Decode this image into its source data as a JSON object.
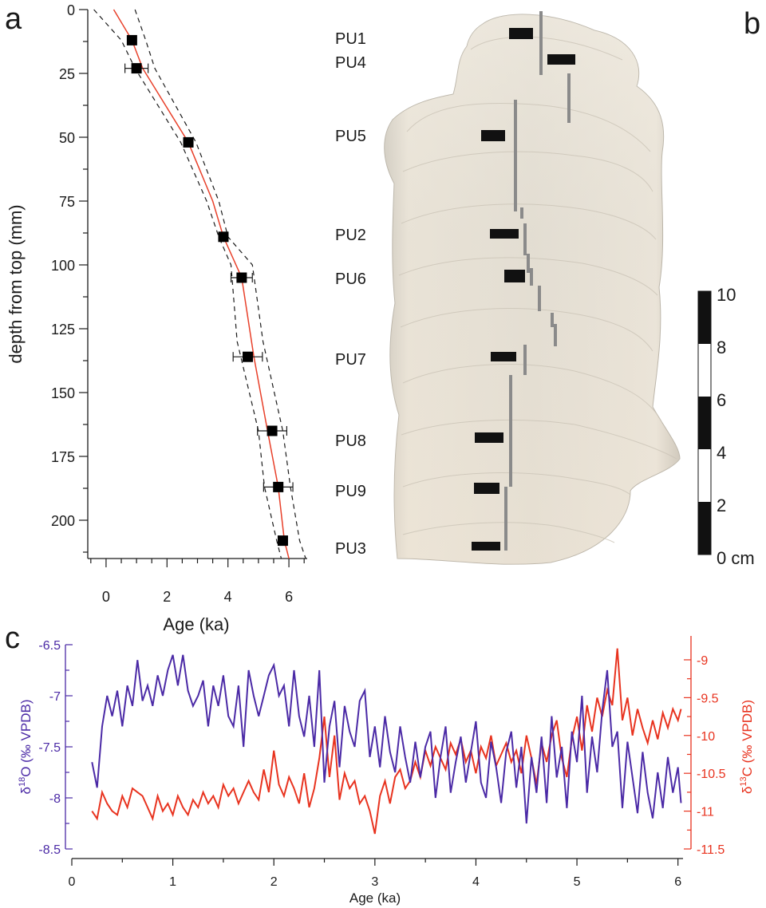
{
  "panel_labels": {
    "a": "a",
    "b": "b",
    "c": "c"
  },
  "colors": {
    "axis": "#1a1a1a",
    "age_model": "#e8402a",
    "d18O": "#4b2aa6",
    "d13C": "#e8331f",
    "sample": "#f1ece1"
  },
  "chart_data": [
    {
      "id": "age_depth_model",
      "type": "scatter",
      "xlabel": "Age (ka)",
      "ylabel": "depth from top (mm)",
      "xlim": [
        -0.6,
        6.6
      ],
      "ylim": [
        0,
        215
      ],
      "y_inverted": true,
      "x_ticks": [
        0,
        2,
        4,
        6
      ],
      "x_tick_labels": [
        "0",
        "2",
        "4",
        "6"
      ],
      "y_ticks": [
        0,
        25,
        50,
        75,
        100,
        125,
        150,
        175,
        200
      ],
      "y_tick_labels": [
        "0",
        "25",
        "50",
        "75",
        "100",
        "125",
        "150",
        "175",
        "200"
      ],
      "dates": [
        {
          "age": 0.85,
          "depth": 12,
          "err": 0.12
        },
        {
          "age": 1.0,
          "depth": 23,
          "err": 0.38
        },
        {
          "age": 2.7,
          "depth": 52,
          "err": 0.15
        },
        {
          "age": 3.85,
          "depth": 89,
          "err": 0.15
        },
        {
          "age": 4.45,
          "depth": 105,
          "err": 0.35
        },
        {
          "age": 4.65,
          "depth": 136,
          "err": 0.48
        },
        {
          "age": 5.45,
          "depth": 165,
          "err": 0.48
        },
        {
          "age": 5.65,
          "depth": 187,
          "err": 0.48
        },
        {
          "age": 5.8,
          "depth": 208,
          "err": 0.15
        }
      ],
      "model": {
        "depth": [
          0,
          12,
          23,
          52,
          75,
          89,
          105,
          136,
          165,
          187,
          208,
          215
        ],
        "age": [
          0.25,
          0.85,
          1.2,
          2.7,
          3.5,
          3.85,
          4.45,
          4.85,
          5.3,
          5.65,
          5.85,
          6.0
        ]
      },
      "model_upper": {
        "depth": [
          0,
          12,
          23,
          52,
          75,
          89,
          100,
          130,
          165,
          187,
          208,
          215
        ],
        "age": [
          -0.4,
          0.5,
          0.95,
          2.45,
          3.3,
          3.7,
          4.1,
          4.3,
          5.0,
          5.2,
          5.6,
          5.75
        ]
      },
      "model_lower": {
        "depth": [
          0,
          12,
          23,
          52,
          75,
          89,
          100,
          130,
          165,
          187,
          208,
          215
        ],
        "age": [
          0.95,
          1.3,
          1.6,
          2.95,
          3.7,
          4.0,
          4.8,
          5.15,
          5.8,
          6.05,
          6.35,
          6.55
        ]
      }
    },
    {
      "id": "isotope_record",
      "type": "line",
      "xlabel": "Age (ka)",
      "xlim": [
        0,
        6.05
      ],
      "x_ticks": [
        0,
        1,
        2,
        3,
        4,
        5,
        6
      ],
      "x_tick_labels": [
        "0",
        "1",
        "2",
        "3",
        "4",
        "5",
        "6"
      ],
      "left_axis": {
        "label_symbol": "δ",
        "label_super": "18",
        "label_rest": "O (‰ VPDB)",
        "lim": [
          -8.5,
          -6.5
        ],
        "ticks": [
          -8.5,
          -8,
          -7.5,
          -7,
          -6.5
        ],
        "tick_labels": [
          "-8.5",
          "-8",
          "-7.5",
          "-7",
          "-6.5"
        ]
      },
      "right_axis": {
        "label_symbol": "δ",
        "label_super": "13",
        "label_rest": "C (‰ VPDB)",
        "lim": [
          -11.5,
          -8.8
        ],
        "ticks": [
          -11.5,
          -11,
          -10.5,
          -10,
          -9.5,
          -9
        ],
        "tick_labels": [
          "-11.5",
          "-11",
          "-10.5",
          "-10",
          "-9.5",
          "-9"
        ]
      },
      "series": [
        {
          "x": [
            0.2,
            0.25,
            0.3,
            0.35,
            0.4,
            0.45,
            0.5,
            0.55,
            0.6,
            0.65,
            0.7,
            0.75,
            0.8,
            0.85,
            0.9,
            0.95,
            1.0,
            1.05,
            1.1,
            1.15,
            1.2,
            1.25,
            1.3,
            1.35,
            1.4,
            1.45,
            1.5,
            1.55,
            1.6,
            1.65,
            1.7,
            1.75,
            1.8,
            1.85,
            1.9,
            1.95,
            2.0,
            2.05,
            2.1,
            2.15,
            2.2,
            2.25,
            2.3,
            2.35,
            2.4,
            2.45,
            2.5,
            2.55,
            2.6,
            2.65,
            2.7,
            2.75,
            2.8,
            2.85,
            2.9,
            2.95,
            3.0,
            3.05,
            3.1,
            3.15,
            3.2,
            3.25,
            3.3,
            3.35,
            3.4,
            3.45,
            3.5,
            3.55,
            3.6,
            3.65,
            3.7,
            3.75,
            3.8,
            3.85,
            3.9,
            3.95,
            4.0,
            4.05,
            4.1,
            4.15,
            4.2,
            4.25,
            4.3,
            4.35,
            4.4,
            4.45,
            4.5,
            4.55,
            4.6,
            4.65,
            4.7,
            4.75,
            4.8,
            4.85,
            4.9,
            4.95,
            5.0,
            5.05,
            5.1,
            5.15,
            5.2,
            5.25,
            5.3,
            5.35,
            5.4,
            5.45,
            5.5,
            5.55,
            5.6,
            5.65,
            5.7,
            5.75,
            5.8,
            5.85,
            5.9,
            5.95,
            6.0,
            6.03
          ],
          "values": [
            -7.65,
            -7.9,
            -7.3,
            -7.0,
            -7.2,
            -6.95,
            -7.3,
            -6.9,
            -7.1,
            -6.65,
            -7.05,
            -6.9,
            -7.1,
            -6.8,
            -7.0,
            -6.75,
            -6.6,
            -6.9,
            -6.6,
            -6.95,
            -7.1,
            -7.0,
            -6.85,
            -7.3,
            -6.9,
            -7.1,
            -6.8,
            -7.2,
            -7.3,
            -6.9,
            -7.5,
            -6.75,
            -7.0,
            -7.2,
            -7.0,
            -6.8,
            -6.7,
            -7.0,
            -6.9,
            -7.3,
            -6.75,
            -7.2,
            -7.4,
            -7.0,
            -7.5,
            -6.75,
            -7.85,
            -7.3,
            -7.05,
            -7.7,
            -7.1,
            -7.35,
            -7.5,
            -7.05,
            -6.95,
            -7.6,
            -7.3,
            -7.7,
            -7.2,
            -7.55,
            -7.75,
            -7.3,
            -7.6,
            -7.85,
            -7.45,
            -7.8,
            -7.5,
            -7.35,
            -8.0,
            -7.6,
            -7.3,
            -7.95,
            -7.65,
            -7.4,
            -7.85,
            -7.55,
            -7.25,
            -7.85,
            -8.0,
            -7.45,
            -7.7,
            -8.05,
            -7.55,
            -7.35,
            -7.9,
            -7.5,
            -8.25,
            -7.6,
            -7.95,
            -7.4,
            -8.05,
            -7.2,
            -7.8,
            -7.5,
            -8.1,
            -7.35,
            -7.65,
            -7.0,
            -7.95,
            -7.4,
            -7.75,
            -7.15,
            -6.75,
            -7.5,
            -7.35,
            -8.1,
            -7.45,
            -7.8,
            -8.15,
            -7.55,
            -7.95,
            -8.2,
            -7.75,
            -8.1,
            -7.6,
            -7.95,
            -7.7,
            -8.05
          ],
          "color": "#4b2aa6",
          "axis": "left"
        },
        {
          "x": [
            0.2,
            0.25,
            0.3,
            0.35,
            0.4,
            0.45,
            0.5,
            0.55,
            0.6,
            0.65,
            0.7,
            0.75,
            0.8,
            0.85,
            0.9,
            0.95,
            1.0,
            1.05,
            1.1,
            1.15,
            1.2,
            1.25,
            1.3,
            1.35,
            1.4,
            1.45,
            1.5,
            1.55,
            1.6,
            1.65,
            1.7,
            1.75,
            1.8,
            1.85,
            1.9,
            1.95,
            2.0,
            2.05,
            2.1,
            2.15,
            2.2,
            2.25,
            2.3,
            2.35,
            2.4,
            2.45,
            2.5,
            2.55,
            2.6,
            2.65,
            2.7,
            2.75,
            2.8,
            2.85,
            2.9,
            2.95,
            3.0,
            3.05,
            3.1,
            3.15,
            3.2,
            3.25,
            3.3,
            3.35,
            3.4,
            3.45,
            3.5,
            3.55,
            3.6,
            3.65,
            3.7,
            3.75,
            3.8,
            3.85,
            3.9,
            3.95,
            4.0,
            4.05,
            4.1,
            4.15,
            4.2,
            4.25,
            4.3,
            4.35,
            4.4,
            4.45,
            4.5,
            4.55,
            4.6,
            4.65,
            4.7,
            4.75,
            4.8,
            4.85,
            4.9,
            4.95,
            5.0,
            5.05,
            5.1,
            5.15,
            5.2,
            5.25,
            5.3,
            5.35,
            5.4,
            5.45,
            5.5,
            5.55,
            5.6,
            5.65,
            5.7,
            5.75,
            5.8,
            5.85,
            5.9,
            5.95,
            6.0,
            6.03
          ],
          "values": [
            -11.0,
            -11.1,
            -10.75,
            -10.9,
            -11.0,
            -11.05,
            -10.8,
            -10.95,
            -10.7,
            -10.75,
            -10.8,
            -10.95,
            -11.1,
            -10.8,
            -11.0,
            -10.9,
            -11.05,
            -10.8,
            -10.95,
            -11.05,
            -10.85,
            -10.95,
            -10.75,
            -10.9,
            -10.8,
            -10.95,
            -10.65,
            -10.8,
            -10.7,
            -10.9,
            -10.75,
            -10.6,
            -10.75,
            -10.85,
            -10.45,
            -10.75,
            -10.2,
            -10.65,
            -10.8,
            -10.55,
            -10.7,
            -10.9,
            -10.5,
            -10.95,
            -10.7,
            -10.3,
            -9.75,
            -10.55,
            -10.0,
            -10.85,
            -10.5,
            -10.7,
            -10.6,
            -10.9,
            -10.8,
            -11.0,
            -11.3,
            -10.8,
            -10.6,
            -10.9,
            -10.55,
            -10.45,
            -10.7,
            -10.6,
            -10.35,
            -10.55,
            -10.2,
            -10.4,
            -10.15,
            -10.3,
            -10.45,
            -10.1,
            -10.25,
            -10.05,
            -10.35,
            -10.2,
            -10.5,
            -10.15,
            -10.3,
            -10.0,
            -10.4,
            -10.25,
            -10.1,
            -10.35,
            -10.2,
            -10.5,
            -10.0,
            -10.3,
            -10.65,
            -10.1,
            -10.35,
            -10.0,
            -9.8,
            -10.3,
            -10.55,
            -10.05,
            -9.75,
            -10.2,
            -9.6,
            -9.95,
            -9.5,
            -9.75,
            -9.4,
            -9.6,
            -8.85,
            -9.8,
            -9.5,
            -10.0,
            -9.65,
            -9.9,
            -10.1,
            -9.8,
            -10.05,
            -9.7,
            -9.9,
            -9.65,
            -9.8,
            -9.65
          ],
          "color": "#e8331f",
          "axis": "right"
        }
      ]
    }
  ],
  "sample": {
    "scale_ticks": [
      "10",
      "8",
      "6",
      "4",
      "2",
      "0 cm"
    ],
    "sections": [
      "PU1",
      "PU4",
      "PU5",
      "PU2",
      "PU6",
      "PU7",
      "PU8",
      "PU9",
      "PU3"
    ]
  }
}
